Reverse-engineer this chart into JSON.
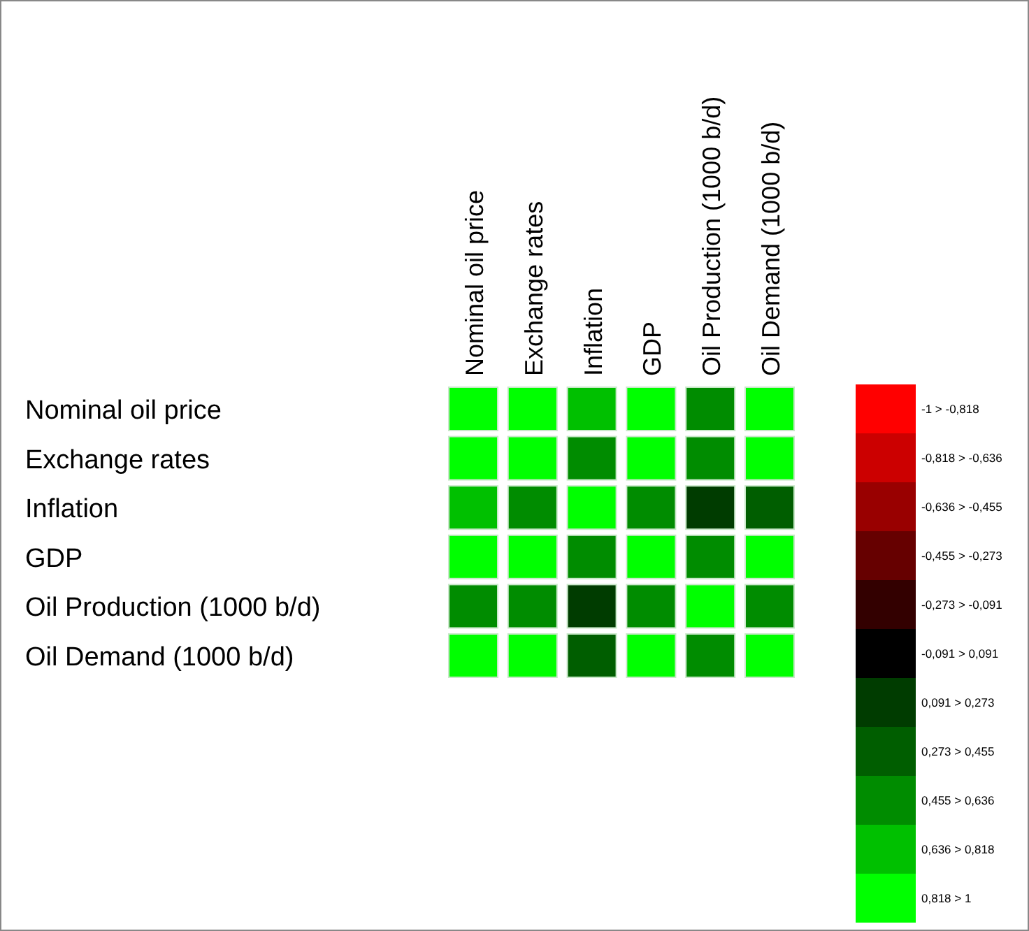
{
  "chart_data": {
    "type": "heatmap",
    "categories": [
      "Nominal oil price",
      "Exchange rates",
      "Inflation",
      "GDP",
      "Oil Production (1000 b/d)",
      "Oil Demand (1000 b/d)"
    ],
    "y_categories": [
      "Nominal oil price",
      "Exchange rates",
      "Inflation",
      "GDP",
      "Oil Production (1000 b/d)",
      "Oil Demand (1000 b/d)"
    ],
    "cells": [
      [
        1,
        0.9,
        0.73,
        0.9,
        0.55,
        0.9
      ],
      [
        0.9,
        1,
        0.55,
        0.9,
        0.55,
        0.9
      ],
      [
        0.73,
        0.55,
        1,
        0.55,
        0.18,
        0.36
      ],
      [
        0.9,
        0.9,
        0.55,
        1,
        0.55,
        0.9
      ],
      [
        0.55,
        0.55,
        0.18,
        0.55,
        1,
        0.55
      ],
      [
        0.9,
        0.9,
        0.36,
        0.9,
        0.55,
        1
      ]
    ],
    "clim": [
      -1,
      1
    ],
    "colors": [
      "#ff0000",
      "#cc0000",
      "#990000",
      "#660000",
      "#330000",
      "#000000",
      "#003c00",
      "#005e00",
      "#008c00",
      "#00c000",
      "#00ff00"
    ],
    "cticks": [
      {
        "value": -0.909,
        "label": "-1 > -0,818"
      },
      {
        "value": -0.727,
        "label": "-0,818 > -0,636"
      },
      {
        "value": -0.545,
        "label": "-0,636 > -0,455"
      },
      {
        "value": -0.364,
        "label": "-0,455 > -0,273"
      },
      {
        "value": -0.182,
        "label": "-0,273 > -0,091"
      },
      {
        "value": 0,
        "label": "-0,091 > 0,091"
      },
      {
        "value": 0.182,
        "label": "0,091 > 0,273"
      },
      {
        "value": 0.364,
        "label": "0,273 > 0,455"
      },
      {
        "value": 0.545,
        "label": "0,455 > 0,636"
      },
      {
        "value": 0.727,
        "label": "0,636 > 0,818"
      },
      {
        "value": 0.909,
        "label": "0,818 > 1"
      }
    ]
  }
}
